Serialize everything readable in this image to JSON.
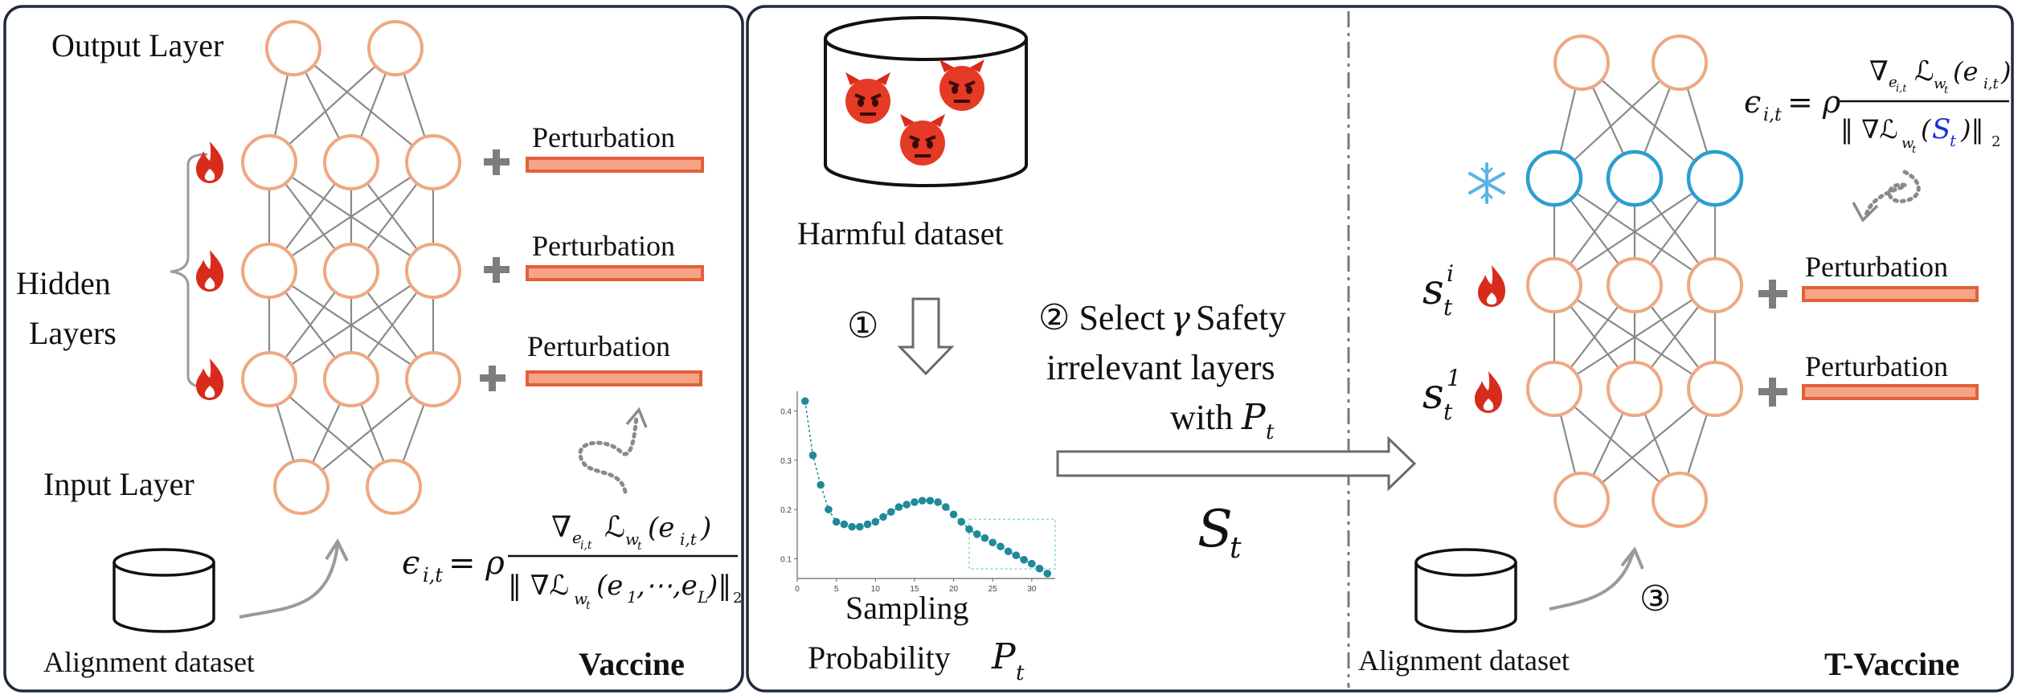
{
  "vaccine_panel": {
    "output_label": "Output Layer",
    "hidden_label_line1": "Hidden",
    "hidden_label_line2": "Layers",
    "input_label": "Input Layer",
    "perturbation_labels": [
      "Perturbation",
      "Perturbation",
      "Perturbation"
    ],
    "dataset_label": "Alignment dataset",
    "method_name": "Vaccine",
    "formula": {
      "lhs_symbol": "ϵ",
      "lhs_sub": "i,t",
      "eq_rho": "= ρ",
      "numerator": "∇",
      "num_sub": "e",
      "num_sub2": "i,t",
      "num_loss": "ℒ",
      "num_loss_sub": "w",
      "num_loss_sub2": "t",
      "num_arg": "(e",
      "num_arg_sub": "i,t",
      "num_close": ")",
      "den_open": "‖ ∇ℒ",
      "den_sub": "w",
      "den_sub2": "t",
      "den_arg": "(e",
      "den_arg_sub1": "1",
      "den_dots": ",⋯,e",
      "den_arg_subL": "L",
      "den_close": ")‖",
      "den_norm": "2"
    }
  },
  "middle_panel": {
    "harmful_label": "Harmful dataset",
    "step1": "①",
    "step2_line1": "② Select",
    "step2_gamma": "γ",
    "step2_line1b": "Safety",
    "step2_line2": "irrelevant layers",
    "step2_line3": "with",
    "step2_sym": "P",
    "step2_sym_sub": "t",
    "st_symbol": "S",
    "st_sub": "t",
    "sampling_line1": "Sampling",
    "sampling_line2": "Probability",
    "sampling_sym": "P",
    "sampling_sym_sub": "t",
    "devil_icons": [
      "devil-face-icon",
      "devil-face-icon",
      "devil-face-icon"
    ]
  },
  "tvaccine_panel": {
    "perturbation_labels": [
      "Perturbation",
      "Perturbation"
    ],
    "layer_label_i": "s",
    "layer_label_i_sup": "i",
    "layer_label_i_sub": "t",
    "layer_label_1": "s",
    "layer_label_1_sup": "1",
    "layer_label_1_sub": "t",
    "dataset_label": "Alignment dataset",
    "step3": "③",
    "method_name": "T-Vaccine",
    "formula": {
      "lhs_symbol": "ϵ",
      "lhs_sub": "i,t",
      "eq_rho": "= ρ",
      "numerator": "∇",
      "num_sub": "e",
      "num_sub2": "i,t",
      "num_loss": "ℒ",
      "num_loss_sub": "w",
      "num_loss_sub2": "t",
      "num_arg": "(e",
      "num_arg_sub": "i,t",
      "num_close": ")",
      "den_open": "‖ ∇ℒ",
      "den_sub": "w",
      "den_sub2": "t",
      "den_arg_open": "(",
      "den_S": "S",
      "den_S_sub": "t",
      "den_close": ")‖",
      "den_norm": "2"
    },
    "colors": {
      "frozen": "#2b9ecf",
      "accent_blue": "#1a2fd6"
    }
  },
  "chart_data": {
    "type": "scatter",
    "x": [
      1,
      2,
      3,
      4,
      5,
      6,
      7,
      8,
      9,
      10,
      11,
      12,
      13,
      14,
      15,
      16,
      17,
      18,
      19,
      20,
      21,
      22,
      23,
      24,
      25,
      26,
      27,
      28,
      29,
      30,
      31,
      32
    ],
    "y": [
      0.42,
      0.31,
      0.25,
      0.2,
      0.175,
      0.17,
      0.165,
      0.165,
      0.17,
      0.175,
      0.185,
      0.195,
      0.205,
      0.21,
      0.215,
      0.218,
      0.218,
      0.215,
      0.205,
      0.19,
      0.175,
      0.16,
      0.15,
      0.142,
      0.133,
      0.125,
      0.115,
      0.107,
      0.098,
      0.09,
      0.08,
      0.07
    ],
    "xticks": [
      0,
      5,
      10,
      15,
      20,
      25,
      30
    ],
    "yticks": [
      0.1,
      0.2,
      0.3,
      0.4
    ],
    "xlim": [
      0,
      33
    ],
    "ylim": [
      0.06,
      0.44
    ],
    "highlight_x_range": [
      22,
      33
    ],
    "color": "#1f8a9a",
    "grid": false
  }
}
